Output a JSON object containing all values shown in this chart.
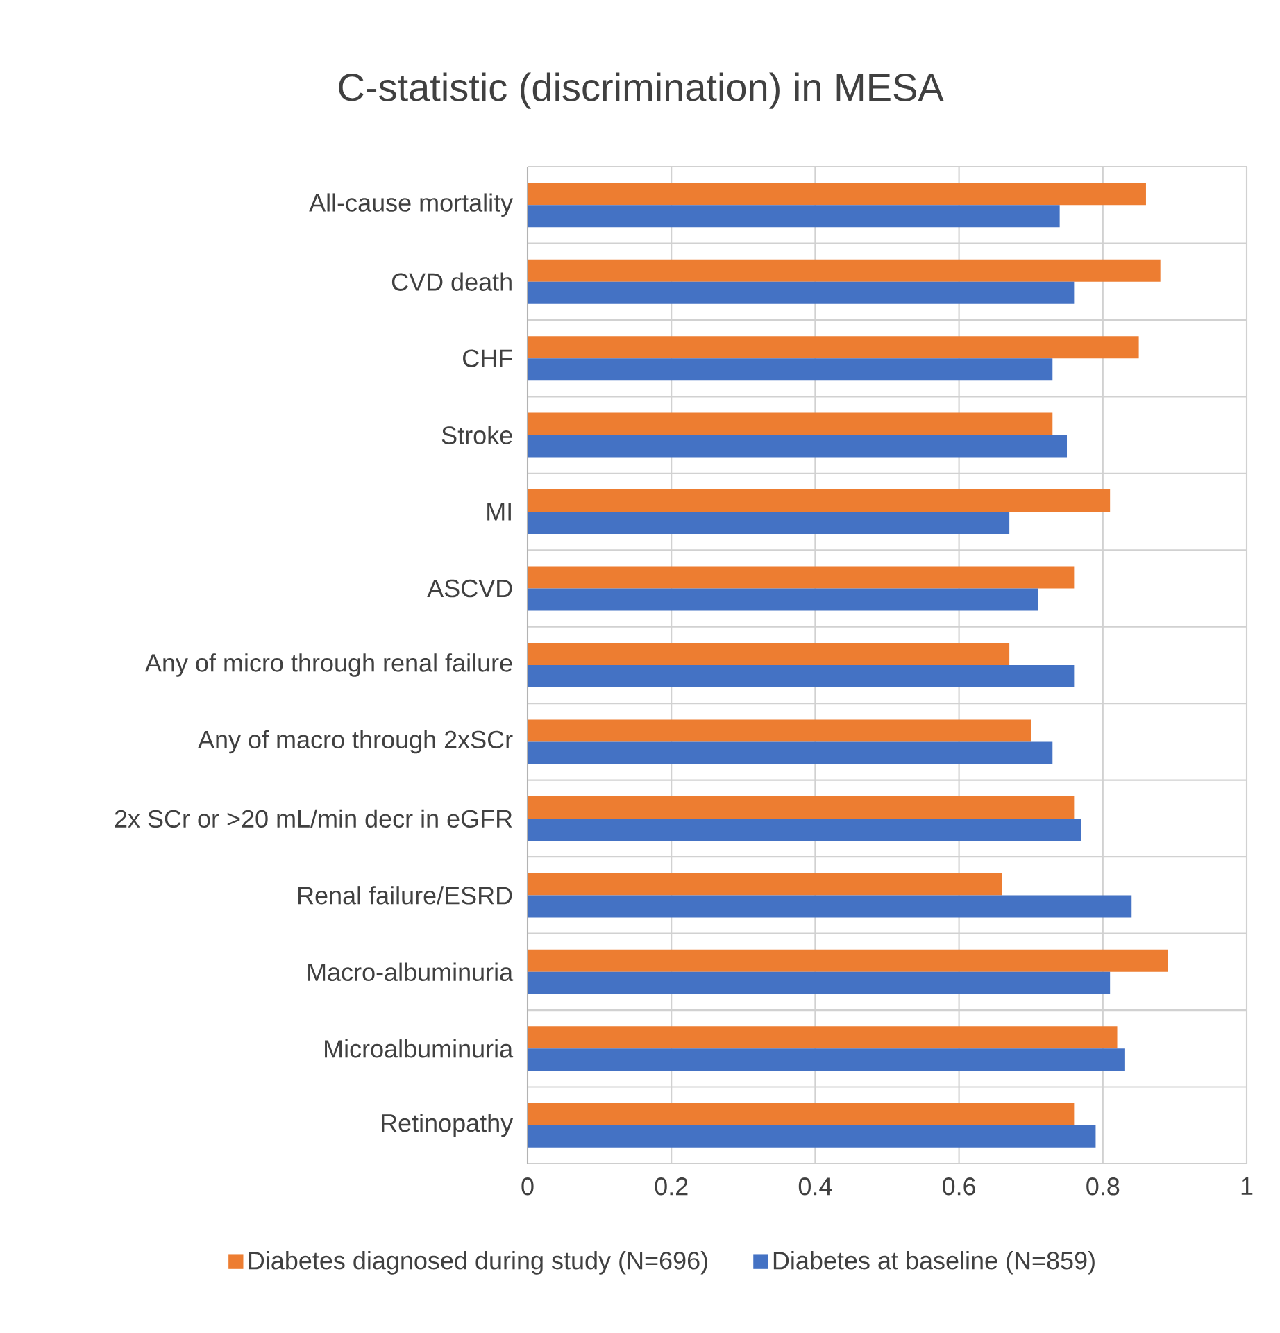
{
  "chart_data": {
    "type": "bar",
    "orientation": "horizontal",
    "title": "C-statistic (discrimination) in MESA",
    "categories": [
      "All-cause mortality",
      "CVD death",
      "CHF",
      "Stroke",
      "MI",
      "ASCVD",
      "Any of micro through renal failure",
      "Any of macro through 2xSCr",
      "2x SCr or >20 mL/min decr in eGFR",
      "Renal failure/ESRD",
      "Macro-albuminuria",
      "Microalbuminuria",
      "Retinopathy"
    ],
    "series": [
      {
        "name": "Diabetes diagnosed during study (N=696)",
        "color": "#ed7d31",
        "values": [
          0.86,
          0.88,
          0.85,
          0.73,
          0.81,
          0.76,
          0.67,
          0.7,
          0.76,
          0.66,
          0.89,
          0.82,
          0.76
        ]
      },
      {
        "name": "Diabetes at baseline (N=859)",
        "color": "#4472c4",
        "values": [
          0.74,
          0.76,
          0.73,
          0.75,
          0.67,
          0.71,
          0.76,
          0.73,
          0.77,
          0.84,
          0.81,
          0.83,
          0.79
        ]
      }
    ],
    "xlim": [
      0,
      1
    ],
    "xticks": [
      0,
      0.2,
      0.4,
      0.6,
      0.8,
      1
    ],
    "grid": true,
    "legend": "bottom"
  }
}
